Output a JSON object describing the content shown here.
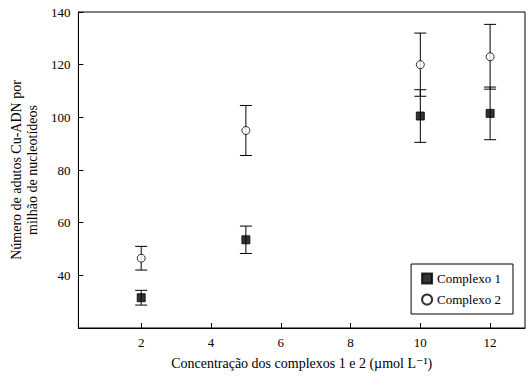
{
  "chart_data": {
    "type": "scatter",
    "x_label": "Concentração dos complexos 1 e 2 (µmol L⁻¹)",
    "y_label": "Número de adutos Cu-ADN por\nmilhão de nucleotídeos",
    "x": [
      2,
      5,
      10,
      12
    ],
    "series": [
      {
        "name": "Complexo 1",
        "color": "#000000",
        "marker": "square",
        "values": [
          31.5,
          53.5,
          100.5,
          101.5
        ],
        "errors": [
          2.8,
          5.2,
          10,
          10
        ]
      },
      {
        "name": "Complexo 2",
        "color": "#000000",
        "marker": "open_circle",
        "values": [
          46.5,
          95,
          120,
          123
        ],
        "errors": [
          4.5,
          9.5,
          12,
          12.3
        ]
      }
    ],
    "xlim": [
      0.2,
      13
    ],
    "xticks": [
      2,
      4,
      6,
      8,
      10,
      12
    ],
    "ylim": [
      20,
      140
    ],
    "yticks": [
      40,
      60,
      80,
      100,
      120,
      140
    ],
    "grid": false,
    "legend": "lower right"
  }
}
